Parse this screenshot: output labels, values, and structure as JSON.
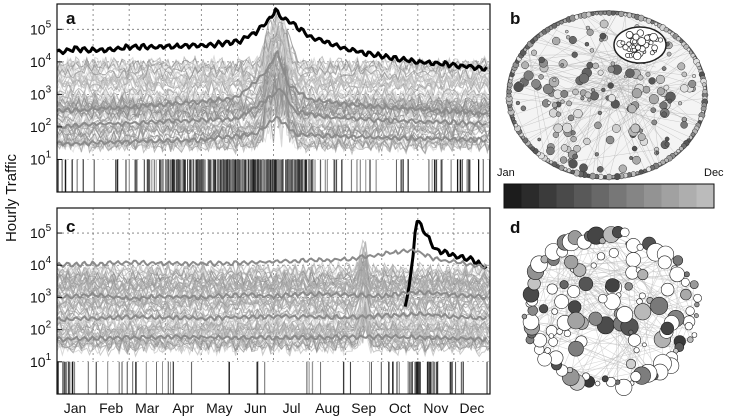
{
  "chart_data": [
    {
      "panel": "a",
      "type": "line",
      "ylabel": "Hourly Traffic",
      "yscale": "log",
      "ylim": [
        1,
        600000
      ],
      "yticks": [
        "10^1",
        "10^2",
        "10^3",
        "10^4",
        "10^5"
      ],
      "xlim": [
        0,
        12
      ],
      "grid": true,
      "series": [
        {
          "values": [
            [
              0,
              20000
            ],
            [
              0.5,
              25000
            ],
            [
              1,
              22000
            ],
            [
              2,
              28000
            ],
            [
              3,
              30000
            ],
            [
              4,
              32000
            ],
            [
              5,
              40000
            ],
            [
              5.5,
              80000
            ],
            [
              5.9,
              200000
            ],
            [
              6.05,
              400000
            ],
            [
              6.2,
              250000
            ],
            [
              6.5,
              160000
            ],
            [
              7,
              60000
            ],
            [
              8,
              25000
            ],
            [
              9,
              15000
            ],
            [
              10,
              10000
            ],
            [
              11,
              8000
            ],
            [
              11.9,
              6000
            ]
          ]
        },
        {
          "values": [
            [
              0,
              300
            ],
            [
              1,
              350
            ],
            [
              2,
              400
            ],
            [
              3,
              500
            ],
            [
              4,
              600
            ],
            [
              5,
              800
            ],
            [
              5.8,
              5000
            ],
            [
              6.1,
              20000
            ],
            [
              6.4,
              2000
            ],
            [
              7,
              700
            ],
            [
              8,
              500
            ],
            [
              9,
              400
            ],
            [
              10,
              350
            ],
            [
              11,
              300
            ],
            [
              11.9,
              250
            ]
          ]
        },
        {
          "values": [
            [
              0,
              100
            ],
            [
              1,
              120
            ],
            [
              2,
              130
            ],
            [
              3,
              150
            ],
            [
              4,
              160
            ],
            [
              5,
              180
            ],
            [
              5.9,
              800
            ],
            [
              6.2,
              1500
            ],
            [
              6.6,
              300
            ],
            [
              7.5,
              200
            ],
            [
              9,
              160
            ],
            [
              11,
              140
            ],
            [
              11.9,
              120
            ]
          ]
        },
        {
          "values": [
            [
              0,
              30
            ],
            [
              2,
              35
            ],
            [
              4,
              40
            ],
            [
              5.5,
              60
            ],
            [
              6.1,
              200
            ],
            [
              6.6,
              60
            ],
            [
              8,
              50
            ],
            [
              10,
              45
            ],
            [
              11.9,
              40
            ]
          ]
        }
      ]
    },
    {
      "panel": "c",
      "type": "line",
      "ylabel": "Hourly Traffic",
      "yscale": "log",
      "ylim": [
        1,
        600000
      ],
      "yticks": [
        "10^1",
        "10^2",
        "10^3",
        "10^4",
        "10^5"
      ],
      "xlim": [
        0,
        12
      ],
      "categories": [
        "Jan",
        "Feb",
        "Mar",
        "Apr",
        "May",
        "Jun",
        "Jul",
        "Aug",
        "Sep",
        "Oct",
        "Nov",
        "Dec"
      ],
      "grid": true,
      "series": [
        {
          "values": [
            [
              9.65,
              500
            ],
            [
              9.85,
              10000
            ],
            [
              9.95,
              300000
            ],
            [
              10.2,
              100000
            ],
            [
              10.5,
              30000
            ],
            [
              11,
              20000
            ],
            [
              11.5,
              15000
            ],
            [
              11.9,
              8000
            ]
          ]
        },
        {
          "values": [
            [
              0,
              10000
            ],
            [
              2,
              12000
            ],
            [
              4,
              11000
            ],
            [
              6,
              13000
            ],
            [
              8,
              15000
            ],
            [
              9.9,
              30000
            ],
            [
              10.5,
              15000
            ],
            [
              11.9,
              9000
            ]
          ]
        },
        {
          "values": [
            [
              0,
              1000
            ],
            [
              1,
              1200
            ],
            [
              2,
              900
            ],
            [
              3,
              1100
            ],
            [
              4,
              1000
            ],
            [
              5,
              1200
            ],
            [
              6,
              1100
            ],
            [
              7,
              1300
            ],
            [
              8,
              1200
            ],
            [
              9,
              1100
            ],
            [
              10,
              1500
            ],
            [
              11,
              1200
            ],
            [
              11.9,
              1000
            ]
          ]
        },
        {
          "values": [
            [
              0,
              200
            ],
            [
              2,
              250
            ],
            [
              4,
              220
            ],
            [
              6,
              260
            ],
            [
              8,
              240
            ],
            [
              10,
              300
            ],
            [
              11.9,
              220
            ]
          ]
        },
        {
          "values": [
            [
              0,
              50
            ],
            [
              3,
              60
            ],
            [
              6,
              55
            ],
            [
              9,
              60
            ],
            [
              11.9,
              50
            ]
          ]
        }
      ]
    },
    {
      "panel": "colorbar",
      "type": "heatmap",
      "labels": {
        "start": "Jan",
        "end": "Dec"
      },
      "colors": [
        "#1c1c1c",
        "#2b2b2b",
        "#3b3b3b",
        "#4a4a4a",
        "#595959",
        "#686868",
        "#777777",
        "#858585",
        "#939393",
        "#a1a1a1",
        "#aeaeae",
        "#bbbbbb"
      ]
    }
  ],
  "labels": {
    "a": "a",
    "b": "b",
    "c": "c",
    "d": "d"
  }
}
